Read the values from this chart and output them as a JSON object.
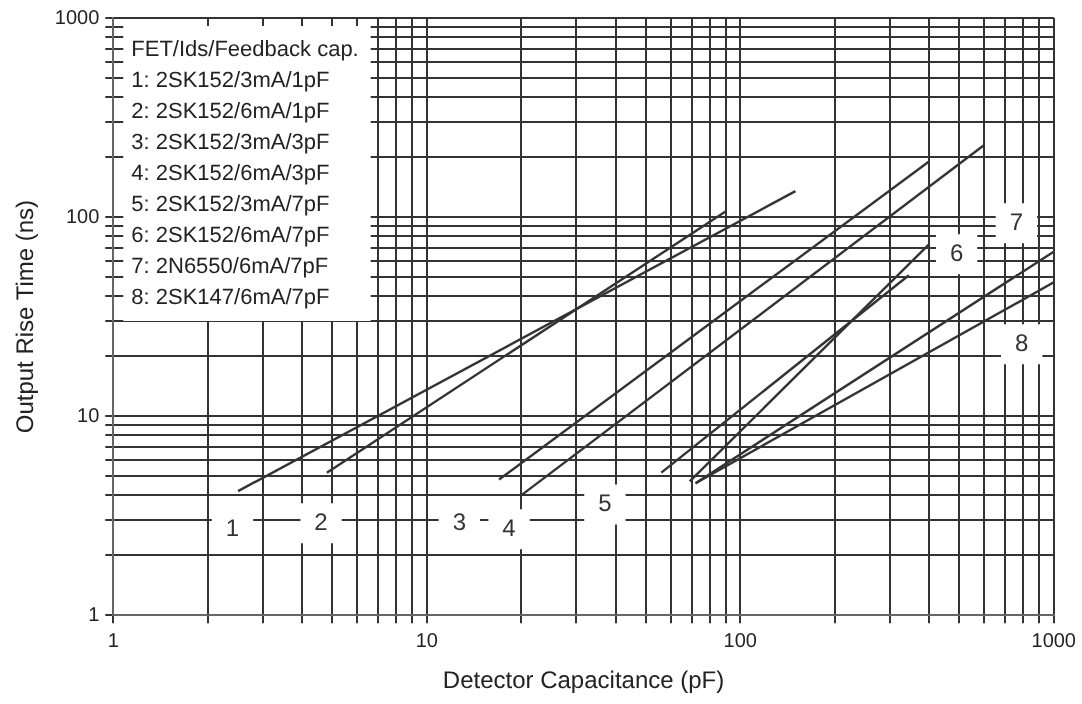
{
  "chart_data": {
    "type": "line",
    "xlabel": "Detector Capacitance (pF)",
    "ylabel": "Output Rise Time (ns)",
    "log": "xy",
    "grid": true,
    "marker": "none",
    "line_style": "solid",
    "xlim": [
      1,
      1000
    ],
    "ylim": [
      1,
      1000
    ],
    "xticks": [
      1,
      {
        "value": 2,
        "label": null
      },
      {
        "value": 3,
        "label": null
      },
      {
        "value": 4,
        "label": null
      },
      {
        "value": 5,
        "label": null
      },
      {
        "value": 6,
        "label": null
      },
      {
        "value": 7,
        "label": null
      },
      {
        "value": 8,
        "label": null
      },
      {
        "value": 9,
        "label": null
      },
      10,
      {
        "value": 20,
        "label": null
      },
      {
        "value": 30,
        "label": null
      },
      {
        "value": 40,
        "label": null
      },
      {
        "value": 50,
        "label": null
      },
      {
        "value": 60,
        "label": null
      },
      {
        "value": 70,
        "label": null
      },
      {
        "value": 80,
        "label": null
      },
      {
        "value": 90,
        "label": null
      },
      100,
      {
        "value": 200,
        "label": null
      },
      {
        "value": 300,
        "label": null
      },
      {
        "value": 400,
        "label": null
      },
      {
        "value": 500,
        "label": null
      },
      {
        "value": 600,
        "label": null
      },
      {
        "value": 700,
        "label": null
      },
      {
        "value": 800,
        "label": null
      },
      {
        "value": 900,
        "label": null
      },
      1000
    ],
    "yticks": [
      1,
      {
        "value": 2,
        "label": null
      },
      {
        "value": 3,
        "label": null
      },
      {
        "value": 4,
        "label": null
      },
      {
        "value": 5,
        "label": null
      },
      {
        "value": 6,
        "label": null
      },
      {
        "value": 7,
        "label": null
      },
      {
        "value": 8,
        "label": null
      },
      {
        "value": 9,
        "label": null
      },
      10,
      {
        "value": 20,
        "label": null
      },
      {
        "value": 30,
        "label": null
      },
      {
        "value": 40,
        "label": null
      },
      {
        "value": 50,
        "label": null
      },
      {
        "value": 60,
        "label": null
      },
      {
        "value": 70,
        "label": null
      },
      {
        "value": 80,
        "label": null
      },
      {
        "value": 90,
        "label": null
      },
      100,
      {
        "value": 200,
        "label": null
      },
      {
        "value": 300,
        "label": null
      },
      {
        "value": 400,
        "label": null
      },
      {
        "value": 500,
        "label": null
      },
      {
        "value": 600,
        "label": null
      },
      {
        "value": 700,
        "label": null
      },
      {
        "value": 800,
        "label": null
      },
      {
        "value": 900,
        "label": null
      },
      1000
    ],
    "series": [
      {
        "color": "#333333",
        "x": [
          2.5,
          150
        ],
        "values": [
          4.2,
          135
        ]
      },
      {
        "color": "#333333",
        "x": [
          4.8,
          90
        ],
        "values": [
          5.2,
          107
        ]
      },
      {
        "color": "#333333",
        "x": [
          17,
          400
        ],
        "values": [
          4.8,
          190
        ]
      },
      {
        "color": "#333333",
        "x": [
          20,
          600
        ],
        "values": [
          4,
          230
        ]
      },
      {
        "color": "#333333",
        "x": [
          56,
          345
        ],
        "values": [
          5.2,
          51
        ]
      },
      {
        "color": "#333333",
        "x": [
          69,
          400
        ],
        "values": [
          4.7,
          73
        ]
      },
      {
        "color": "#333333",
        "x": [
          72,
          1000
        ],
        "values": [
          4.6,
          67
        ]
      },
      {
        "color": "#333333",
        "x": [
          72,
          1000
        ],
        "values": [
          4.6,
          47
        ]
      }
    ],
    "annotations": [
      "FET/Ids/Feedback cap.",
      "1: 2SK152/3mA/1pF",
      "2: 2SK152/6mA/1pF",
      "3: 2SK152/3mA/3pF",
      "4: 2SK152/6mA/3pF",
      "5: 2SK152/3mA/7pF",
      "6: 2SK152/6mA/7pF",
      "7: 2N6550/6mA/7pF",
      "8: 2SK147/6mA/7pF",
      {
        "text": "1",
        "x": 2.4,
        "y": 2.7
      },
      {
        "text": "2",
        "x": 4.6,
        "y": 2.9
      },
      {
        "text": "3",
        "x": 12.7,
        "y": 2.9
      },
      {
        "text": "4",
        "x": 18.3,
        "y": 2.7
      },
      {
        "text": "5",
        "x": 37,
        "y": 3.6
      },
      {
        "text": "6",
        "x": 490,
        "y": 65
      },
      {
        "text": "7",
        "x": 760,
        "y": 93
      },
      {
        "text": "8",
        "x": 790,
        "y": 23
      }
    ]
  }
}
